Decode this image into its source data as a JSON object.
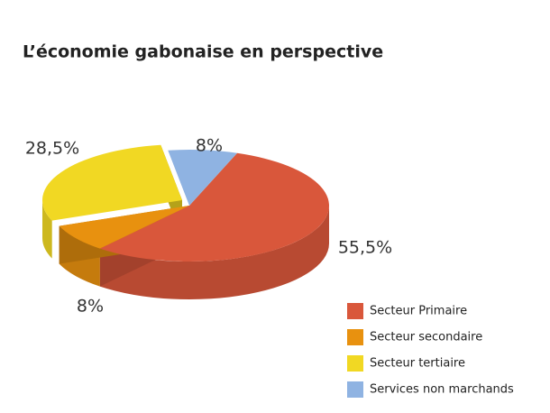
{
  "chart_data": {
    "type": "pie",
    "title": "L’économie gabonaise en perspective",
    "categories": [
      "Secteur Primaire",
      "Secteur secondaire",
      "Secteur tertiaire",
      "Services non marchands"
    ],
    "values": [
      55.5,
      8,
      28.5,
      8
    ],
    "value_labels": [
      "55,5%",
      "8%",
      "28,5%",
      "8%"
    ],
    "colors": [
      "#d9573b",
      "#e8910f",
      "#f1d823",
      "#8fb3e2"
    ]
  }
}
